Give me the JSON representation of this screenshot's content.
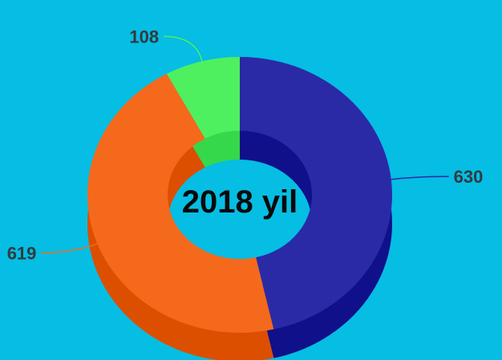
{
  "chart_data": {
    "type": "pie",
    "variant": "3d-donut",
    "center_label": "2018 yil",
    "slices": [
      {
        "value": 630,
        "label": "630",
        "color": "#2a2aa6",
        "side_color": "#10108a"
      },
      {
        "value": 619,
        "label": "619",
        "color": "#f5691c",
        "side_color": "#dd4f00"
      },
      {
        "value": 108,
        "label": "108",
        "color": "#4ef060",
        "side_color": "#35d84a"
      }
    ],
    "background": "#06bde3"
  }
}
